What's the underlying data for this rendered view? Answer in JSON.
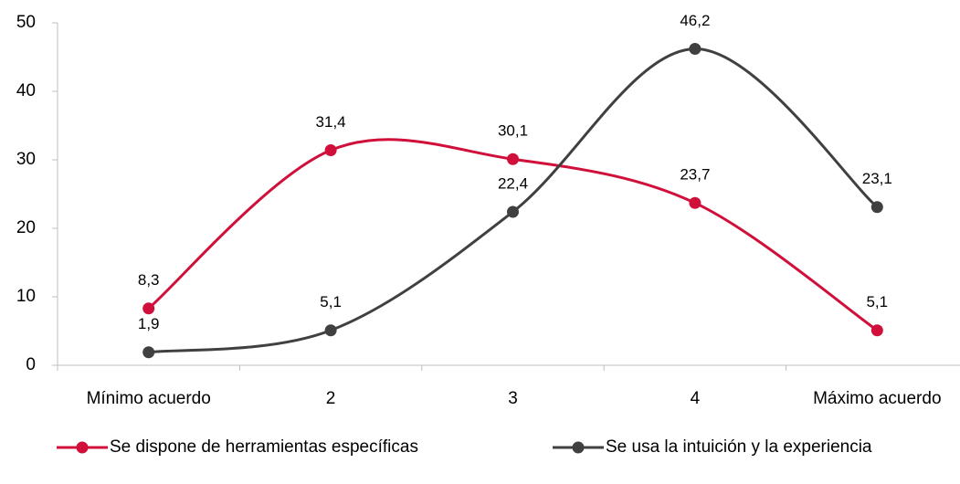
{
  "chart_data": {
    "type": "line",
    "categories": [
      "Mínimo acuerdo",
      "2",
      "3",
      "4",
      "Máximo acuerdo"
    ],
    "series": [
      {
        "name": "Se dispone de herramientas específicas",
        "color": "#d0103a",
        "values": [
          8.3,
          31.4,
          30.1,
          23.7,
          5.1
        ],
        "value_labels": [
          "8,3",
          "31,4",
          "30,1",
          "23,7",
          "5,1"
        ]
      },
      {
        "name": "Se usa la intuición y la experiencia",
        "color": "#404040",
        "values": [
          1.9,
          5.1,
          22.4,
          46.2,
          23.1
        ],
        "value_labels": [
          "1,9",
          "5,1",
          "22,4",
          "46,2",
          "23,1"
        ]
      }
    ],
    "ylim": [
      0,
      50
    ],
    "yticks": [
      0,
      10,
      20,
      30,
      40,
      50
    ],
    "smooth": true,
    "legend": "bottom"
  }
}
